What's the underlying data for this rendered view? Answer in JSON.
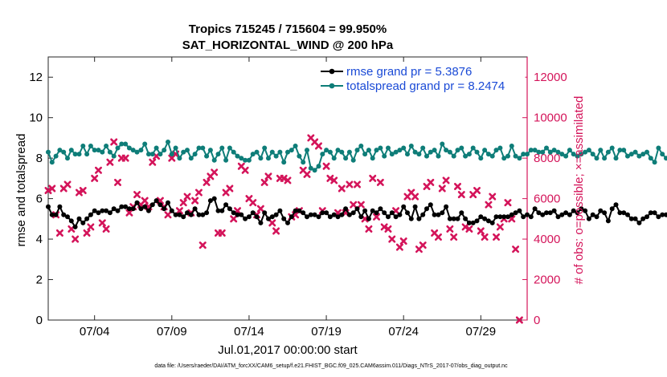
{
  "chart_data": {
    "type": "line",
    "title_line1": "Tropics 715245 / 715604 = 99.950%",
    "title_line2": "SAT_HORIZONTAL_WIND @ 200 hPa",
    "ylabel_left": "rmse and totalspread",
    "ylabel_right": "# of obs: o=possible; ×=assimilated",
    "xlabel": "Jul.01,2017 00:00:00 start",
    "footnote": "data file: /Users/raeder/DAI/ATM_forcXX/CAM6_setup/f.e21.FHIST_BGC.f09_025.CAM6assim.011/Diags_NTrS_2017-07/obs_diag_output.nc",
    "x_range": [
      1,
      32
    ],
    "ylim_left": [
      0,
      13
    ],
    "ylim_right": [
      0,
      13000
    ],
    "x_ticks": [
      {
        "value": 4,
        "label": "07/04"
      },
      {
        "value": 9,
        "label": "07/09"
      },
      {
        "value": 14,
        "label": "07/14"
      },
      {
        "value": 19,
        "label": "07/19"
      },
      {
        "value": 24,
        "label": "07/24"
      },
      {
        "value": 29,
        "label": "07/29"
      }
    ],
    "y_ticks_left": [
      {
        "value": 0,
        "label": "0"
      },
      {
        "value": 2,
        "label": "2"
      },
      {
        "value": 4,
        "label": "4"
      },
      {
        "value": 6,
        "label": "6"
      },
      {
        "value": 8,
        "label": "8"
      },
      {
        "value": 10,
        "label": "10"
      },
      {
        "value": 12,
        "label": "12"
      }
    ],
    "y_ticks_right": [
      {
        "value": 0,
        "label": "0"
      },
      {
        "value": 2000,
        "label": "2000"
      },
      {
        "value": 4000,
        "label": "4000"
      },
      {
        "value": 6000,
        "label": "6000"
      },
      {
        "value": 8000,
        "label": "8000"
      },
      {
        "value": 10000,
        "label": "10000"
      },
      {
        "value": 12000,
        "label": "12000"
      }
    ],
    "legend_position": "top-right",
    "x_start": 1.0,
    "x_step": 0.25,
    "series": [
      {
        "name": "rmse",
        "legend": "rmse grand pr = 5.3876",
        "color": "#000000",
        "axis": "left",
        "values": [
          5.6,
          5.2,
          5.2,
          5.6,
          5.2,
          5.1,
          4.9,
          4.6,
          5.0,
          4.8,
          5.0,
          5.2,
          5.4,
          5.3,
          5.4,
          5.4,
          5.3,
          5.5,
          5.4,
          5.6,
          5.6,
          5.5,
          5.5,
          5.8,
          5.5,
          5.6,
          5.4,
          5.7,
          5.9,
          5.7,
          5.5,
          5.8,
          5.4,
          5.2,
          5.2,
          5.1,
          5.3,
          5.2,
          5.5,
          5.2,
          5.2,
          5.3,
          5.9,
          6.0,
          5.4,
          5.4,
          5.7,
          5.5,
          5.3,
          5.2,
          5.2,
          5.0,
          5.1,
          5.3,
          5.1,
          4.8,
          5.3,
          5.0,
          5.1,
          5.2,
          5.4,
          5.0,
          4.8,
          5.1,
          5.4,
          5.4,
          5.3,
          5.1,
          5.2,
          5.2,
          5.1,
          5.3,
          5.3,
          5.1,
          5.2,
          5.1,
          5.2,
          5.5,
          5.2,
          5.3,
          5.5,
          5.1,
          5.4,
          5.0,
          5.4,
          5.3,
          5.5,
          5.3,
          5.1,
          5.3,
          5.1,
          5.2,
          5.6,
          5.3,
          5.0,
          5.6,
          5.0,
          5.2,
          5.5,
          5.7,
          5.2,
          5.2,
          5.3,
          5.6,
          5.0,
          5.0,
          5.0,
          5.3,
          5.0,
          4.8,
          4.8,
          4.9,
          5.1,
          5.0,
          4.9,
          4.8,
          5.1,
          5.1,
          5.1,
          5.1,
          5.2,
          5.3,
          5.4,
          5.1,
          5.2,
          5.1,
          5.5,
          5.3,
          5.2,
          5.3,
          5.3,
          5.4,
          5.1,
          5.2,
          5.3,
          5.2,
          5.4,
          5.3,
          5.5,
          5.4,
          5.0,
          5.2,
          5.1,
          5.4,
          5.3,
          4.9,
          5.5,
          5.7,
          5.3,
          5.3,
          5.2,
          5.0,
          5.0,
          4.8,
          5.0,
          5.1,
          5.3,
          5.3,
          5.1,
          5.2,
          5.2,
          5.3,
          5.3,
          5.7,
          5.4,
          5.6,
          5.6,
          6.0,
          5.8,
          5.6,
          6.2,
          6.4,
          5.8,
          5.6,
          5.7,
          5.5,
          5.4,
          5.6,
          5.5,
          5.5,
          5.5,
          5.4,
          5.5,
          5.4,
          5.3,
          5.5,
          5.8,
          5.9,
          5.5,
          5.7,
          5.5,
          5.5,
          5.9,
          5.8,
          5.6,
          5.3,
          5.6,
          5.6,
          5.8,
          5.4,
          5.3,
          5.4,
          5.4,
          5.6,
          5.3,
          5.3,
          5.3,
          5.7,
          5.7,
          5.4,
          5.2,
          5.3,
          5.5,
          5.3,
          5.2,
          5.3,
          5.6,
          5.2,
          5.0,
          5.3,
          5.4,
          5.2,
          5.2,
          5.1,
          5.2,
          5.4,
          5.2,
          5.4,
          5.3,
          5.3,
          5.4,
          5.3,
          5.2,
          5.0,
          5.2,
          5.1,
          5.2,
          5.3,
          5.3,
          5.1
        ]
      },
      {
        "name": "totalspread",
        "legend": "totalspread grand pr = 8.2474",
        "color": "#0e7d78",
        "axis": "left",
        "values": [
          8.3,
          7.8,
          8.1,
          8.4,
          8.3,
          8.0,
          8.4,
          8.2,
          8.2,
          8.6,
          8.2,
          8.6,
          8.4,
          8.4,
          8.3,
          8.6,
          8.3,
          8.1,
          8.5,
          8.7,
          8.7,
          8.5,
          8.4,
          8.3,
          8.4,
          8.7,
          8.2,
          8.2,
          8.5,
          8.2,
          8.4,
          8.8,
          8.2,
          8.5,
          8.0,
          8.3,
          8.4,
          8.0,
          8.2,
          8.5,
          8.5,
          8.1,
          8.4,
          7.9,
          8.2,
          8.5,
          7.9,
          8.5,
          8.3,
          8.1,
          8.0,
          7.9,
          7.9,
          8.2,
          8.3,
          8.0,
          8.5,
          8.0,
          8.3,
          8.1,
          8.3,
          7.8,
          8.3,
          8.4,
          8.6,
          8.1,
          7.8,
          8.4,
          7.5,
          7.4,
          7.6,
          8.2,
          8.4,
          8.3,
          8.0,
          8.4,
          8.3,
          8.0,
          8.3,
          7.9,
          8.4,
          8.6,
          8.2,
          8.4,
          8.0,
          8.4,
          8.5,
          8.1,
          8.5,
          8.2,
          8.3,
          8.4,
          8.5,
          8.2,
          8.6,
          8.3,
          8.2,
          8.5,
          8.1,
          8.3,
          8.4,
          8.1,
          8.7,
          8.4,
          8.3,
          8.1,
          8.4,
          8.5,
          8.1,
          8.2,
          8.5,
          8.3,
          8.0,
          8.4,
          8.2,
          8.1,
          8.4,
          8.5,
          8.0,
          8.1,
          8.6,
          8.1,
          8.0,
          8.2,
          8.2,
          8.4,
          8.4,
          8.3,
          8.3,
          8.5,
          8.3,
          8.4,
          8.3,
          8.2,
          8.1,
          8.4,
          8.2,
          8.1,
          8.2,
          8.3,
          8.4,
          8.2,
          8.0,
          8.4,
          8.0,
          8.3,
          8.5,
          8.0,
          8.4,
          8.4,
          8.1,
          8.2,
          8.3,
          8.1,
          8.2,
          8.3,
          8.0,
          7.8,
          8.5,
          8.2,
          8.0,
          8.2,
          8.4,
          8.1,
          8.4,
          8.1,
          8.0,
          8.4,
          8.4,
          8.3,
          8.2,
          8.4,
          8.4,
          8.4,
          8.1,
          8.1,
          7.9,
          8.1,
          8.1,
          8.2,
          8.2,
          8.4,
          8.1,
          8.5,
          8.2,
          8.2,
          8.4,
          8.1,
          8.6,
          8.3,
          8.6,
          8.1,
          8.5,
          8.2,
          8.4,
          8.0,
          8.4,
          8.4,
          7.9,
          8.5,
          8.0,
          8.4,
          8.0,
          8.2,
          8.5,
          8.1,
          8.4,
          8.6,
          8.1,
          8.4,
          8.5,
          8.1,
          8.4,
          8.2,
          8.5,
          8.1,
          8.0,
          8.5,
          8.1,
          8.3,
          8.4,
          8.0,
          8.3,
          8.4,
          8.2,
          8.3,
          8.1,
          8.3,
          8.5,
          8.1,
          8.2,
          8.0,
          8.5,
          8.3,
          8.3,
          8.0,
          8.6,
          8.2,
          8.0,
          8.6,
          8.2,
          8.3,
          8.8
        ]
      },
      {
        "name": "obs_assimilated",
        "legend": "",
        "color": "#d4145a",
        "axis": "right",
        "values": [
          6400,
          6500,
          5200,
          4300,
          6500,
          6700,
          4500,
          4000,
          6300,
          6400,
          4300,
          4600,
          7000,
          7400,
          4800,
          4500,
          7800,
          8800,
          6800,
          8000,
          8000,
          5300,
          5600,
          6200,
          5700,
          5900,
          5600,
          7800,
          8100,
          5900,
          5600,
          5200,
          8000,
          8200,
          5400,
          5800,
          6100,
          5300,
          5900,
          6300,
          3700,
          6800,
          7100,
          7300,
          4300,
          4300,
          6300,
          6500,
          5000,
          5400,
          7600,
          7400,
          6000,
          5800,
          5200,
          5500,
          6800,
          7100,
          4800,
          4400,
          7000,
          7000,
          6900,
          5100,
          5200,
          5400,
          7400,
          7200,
          9000,
          8800,
          8600,
          5400,
          7600,
          7000,
          6900,
          5300,
          6500,
          5300,
          6700,
          5700,
          6700,
          5700,
          5000,
          4500,
          7000,
          5100,
          6800,
          4600,
          4500,
          4000,
          5400,
          3600,
          3900,
          6100,
          6300,
          6100,
          3500,
          3700,
          6600,
          6800,
          4300,
          4100,
          6500,
          6900,
          4500,
          4100,
          6600,
          6200,
          4600,
          4500,
          6200,
          6400,
          4400,
          4100,
          5700,
          6100,
          4100,
          4600,
          5000,
          5800,
          5000,
          3500,
          0
        ]
      }
    ]
  }
}
